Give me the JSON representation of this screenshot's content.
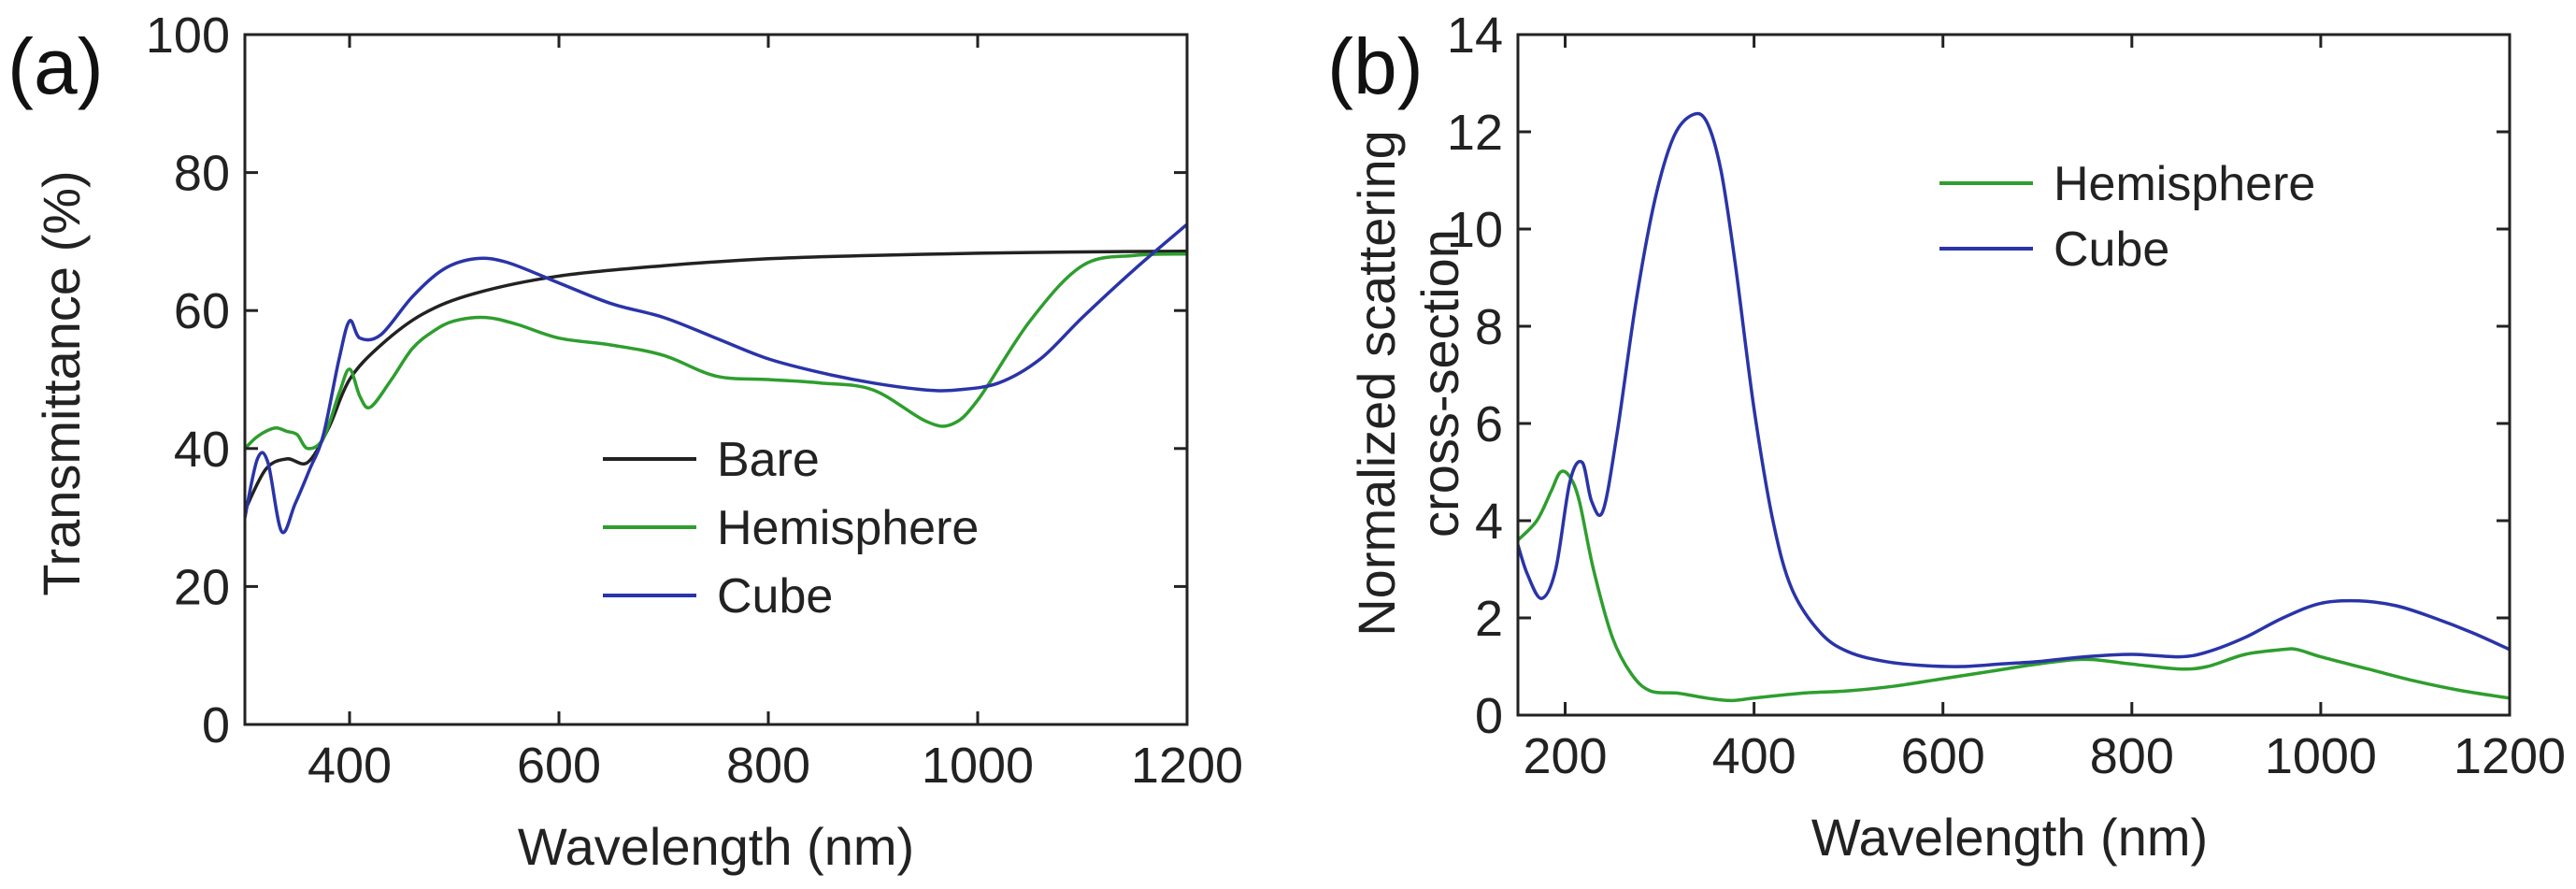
{
  "chart_data": [
    {
      "type": "line",
      "panel_label": "(a)",
      "xlabel": "Wavelength (nm)",
      "ylabel": "Transmittance (%)",
      "xlim": [
        300,
        1200
      ],
      "ylim": [
        0,
        100
      ],
      "xticks": [
        400,
        600,
        800,
        1000,
        1200
      ],
      "yticks": [
        0,
        20,
        40,
        60,
        80,
        100
      ],
      "legend": "center-right",
      "series": [
        {
          "name": "Bare",
          "color": "#222222",
          "x": [
            300,
            320,
            340,
            360,
            380,
            400,
            430,
            470,
            520,
            600,
            700,
            800,
            900,
            1000,
            1100,
            1200
          ],
          "y": [
            31,
            37,
            38.5,
            38,
            43,
            50,
            55,
            59.5,
            62.5,
            65,
            66.5,
            67.5,
            68,
            68.3,
            68.5,
            68.6
          ]
        },
        {
          "name": "Hemisphere",
          "color": "#2e9e2e",
          "x": [
            300,
            310,
            320,
            330,
            340,
            350,
            360,
            375,
            390,
            400,
            410,
            420,
            440,
            460,
            480,
            500,
            530,
            560,
            600,
            650,
            700,
            750,
            800,
            850,
            900,
            950,
            975,
            1000,
            1050,
            1100,
            1150,
            1200
          ],
          "y": [
            40,
            41.5,
            42.5,
            43,
            42.5,
            42,
            40,
            41.5,
            48,
            51.5,
            47.5,
            46,
            50,
            54.5,
            57,
            58.5,
            59,
            58,
            56,
            55,
            53.5,
            50.5,
            50,
            49.5,
            48.5,
            44,
            43.5,
            47,
            58.5,
            66.5,
            68,
            68.2
          ]
        },
        {
          "name": "Cube",
          "color": "#2a34a8",
          "x": [
            300,
            312,
            322,
            335,
            348,
            362,
            375,
            390,
            400,
            410,
            430,
            460,
            490,
            520,
            550,
            600,
            650,
            700,
            750,
            800,
            850,
            900,
            950,
            980,
            1020,
            1060,
            1100,
            1150,
            1200
          ],
          "y": [
            30,
            38.5,
            38,
            28,
            32,
            37,
            42,
            53,
            58.5,
            56,
            56.5,
            62,
            66,
            67.5,
            67,
            64,
            61,
            59,
            56,
            53,
            51,
            49.5,
            48.5,
            48.5,
            49.5,
            53,
            59,
            66,
            72.5
          ]
        }
      ]
    },
    {
      "type": "line",
      "panel_label": "(b)",
      "xlabel": "Wavelength (nm)",
      "ylabel": "Normalized scattering",
      "ylabel2": "cross-section",
      "xlim": [
        150,
        1200
      ],
      "ylim": [
        0,
        14
      ],
      "xticks": [
        200,
        400,
        600,
        800,
        1000,
        1200
      ],
      "yticks": [
        0,
        2,
        4,
        6,
        8,
        10,
        12,
        14
      ],
      "legend": "top-right",
      "series": [
        {
          "name": "Hemisphere",
          "color": "#2e9e2e",
          "x": [
            150,
            170,
            185,
            195,
            205,
            215,
            230,
            250,
            270,
            290,
            320,
            350,
            375,
            400,
            450,
            500,
            550,
            600,
            650,
            700,
            750,
            800,
            850,
            880,
            920,
            960,
            975,
            1000,
            1050,
            1100,
            1150,
            1200
          ],
          "y": [
            3.6,
            4.0,
            4.6,
            5.0,
            4.9,
            4.4,
            3.0,
            1.6,
            0.85,
            0.5,
            0.45,
            0.35,
            0.3,
            0.35,
            0.45,
            0.5,
            0.6,
            0.75,
            0.9,
            1.05,
            1.15,
            1.05,
            0.95,
            1.0,
            1.25,
            1.35,
            1.35,
            1.2,
            0.95,
            0.7,
            0.5,
            0.35
          ]
        },
        {
          "name": "Cube",
          "color": "#2a34a8",
          "x": [
            150,
            160,
            175,
            190,
            205,
            218,
            228,
            240,
            255,
            275,
            295,
            315,
            335,
            350,
            365,
            380,
            400,
            420,
            440,
            470,
            500,
            540,
            580,
            620,
            660,
            700,
            750,
            800,
            850,
            880,
            920,
            960,
            1000,
            1040,
            1080,
            1120,
            1160,
            1200
          ],
          "y": [
            3.5,
            2.9,
            2.4,
            3.0,
            4.8,
            5.2,
            4.4,
            4.2,
            5.8,
            8.5,
            10.6,
            11.9,
            12.35,
            12.2,
            11.2,
            9.3,
            6.3,
            4.0,
            2.6,
            1.7,
            1.3,
            1.1,
            1.02,
            1.0,
            1.05,
            1.1,
            1.2,
            1.25,
            1.2,
            1.3,
            1.6,
            2.0,
            2.3,
            2.35,
            2.25,
            2.0,
            1.7,
            1.35
          ]
        }
      ]
    }
  ]
}
